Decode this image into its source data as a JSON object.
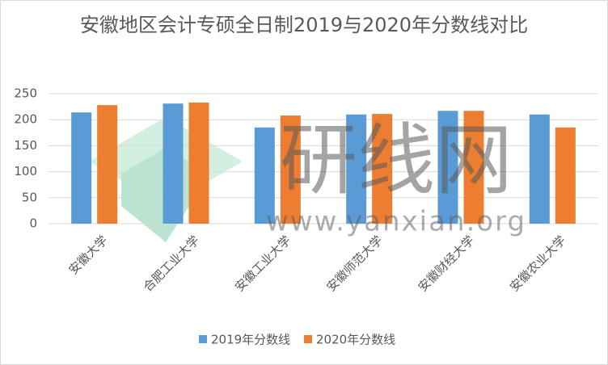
{
  "chart_data": {
    "type": "bar",
    "title": "安徽地区会计专硕全日制2019与2020年分数线对比",
    "categories": [
      "安徽大学",
      "合肥工业大学",
      "安徽工业大学",
      "安徽师范大学",
      "安徽财经大学",
      "安徽农业大学"
    ],
    "series": [
      {
        "name": "2019年分数线",
        "color": "#5b9bd5",
        "values": [
          214,
          231,
          185,
          210,
          217,
          210
        ]
      },
      {
        "name": "2020年分数线",
        "color": "#ed7d31",
        "values": [
          228,
          233,
          208,
          211,
          217,
          185
        ]
      }
    ],
    "ylim": [
      0,
      250
    ],
    "yticks": [
      0,
      50,
      100,
      150,
      200,
      250
    ],
    "grid": true,
    "legend": "bottom",
    "watermark": [
      "研线网",
      "www.yanxian.org"
    ]
  }
}
